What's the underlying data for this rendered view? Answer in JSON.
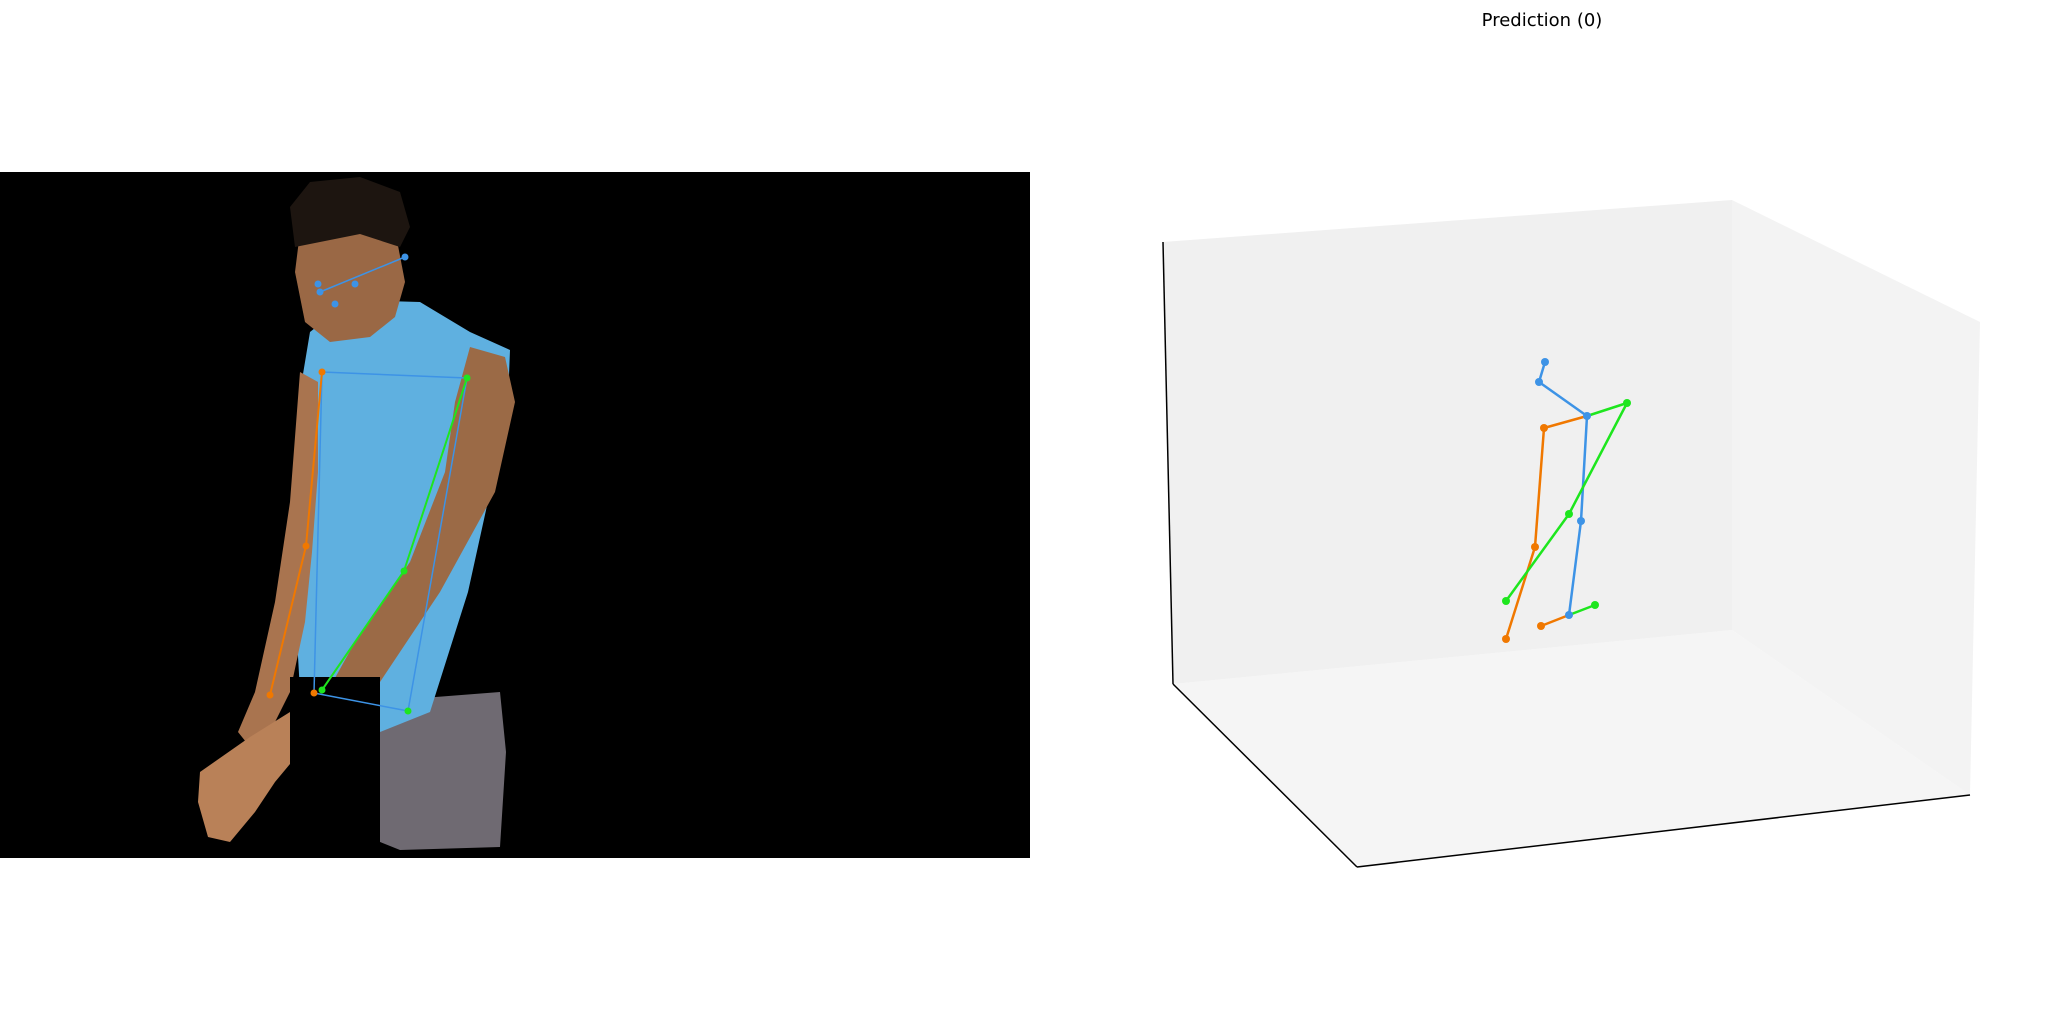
{
  "figure": {
    "title": "Prediction (0)"
  },
  "colors": {
    "left_limb": "#f07800",
    "right_limb": "#1ee61e",
    "spine": "#3d93e6",
    "pane_back": "#f0f0f0",
    "pane_side": "#f3f3f3",
    "pane_floor": "#f5f5f5",
    "axis_line": "#000000",
    "photo_background": "#000000",
    "shirt": "#5fb0e0",
    "skin": "#a9744f",
    "hair": "#1d1510",
    "shorts": "#6f6a72"
  },
  "joint_groups": [
    "spine",
    "left_limb",
    "right_limb"
  ]
}
